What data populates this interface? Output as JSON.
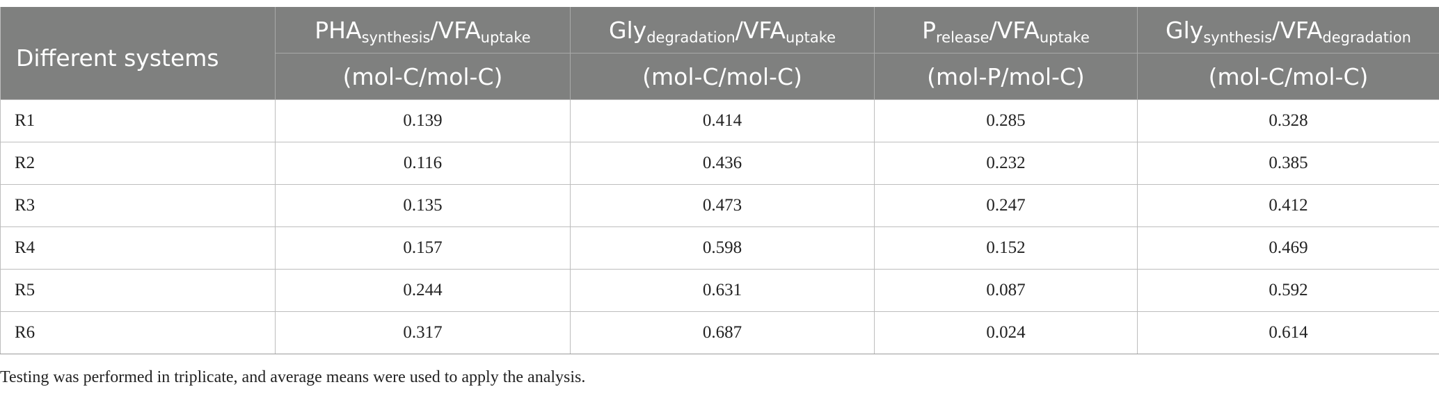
{
  "header": {
    "first_col": "Different systems",
    "columns": [
      {
        "base1": "PHA",
        "sub1": "synthesis",
        "sep": "/",
        "base2": "VFA",
        "sub2": "uptake",
        "unit": "(mol-C/mol-C)"
      },
      {
        "base1": "Gly",
        "sub1": "degradation",
        "sep": "/",
        "base2": "VFA",
        "sub2": "uptake",
        "unit": "(mol-C/mol-C)"
      },
      {
        "base1": "P",
        "sub1": "release",
        "sep": "/",
        "base2": "VFA",
        "sub2": "uptake",
        "unit": "(mol-P/mol-C)"
      },
      {
        "base1": "Gly",
        "sub1": "synthesis",
        "sep": "/",
        "base2": "VFA",
        "sub2": "degradation",
        "unit": "(mol-C/mol-C)"
      }
    ]
  },
  "rows": [
    {
      "system": "R1",
      "values": [
        "0.139",
        "0.414",
        "0.285",
        "0.328"
      ]
    },
    {
      "system": "R2",
      "values": [
        "0.116",
        "0.436",
        "0.232",
        "0.385"
      ]
    },
    {
      "system": "R3",
      "values": [
        "0.135",
        "0.473",
        "0.247",
        "0.412"
      ]
    },
    {
      "system": "R4",
      "values": [
        "0.157",
        "0.598",
        "0.152",
        "0.469"
      ]
    },
    {
      "system": "R5",
      "values": [
        "0.244",
        "0.631",
        "0.087",
        "0.592"
      ]
    },
    {
      "system": "R6",
      "values": [
        "0.317",
        "0.687",
        "0.024",
        "0.614"
      ]
    }
  ],
  "footnote": "Testing was performed in triplicate, and average means were used to apply the analysis."
}
